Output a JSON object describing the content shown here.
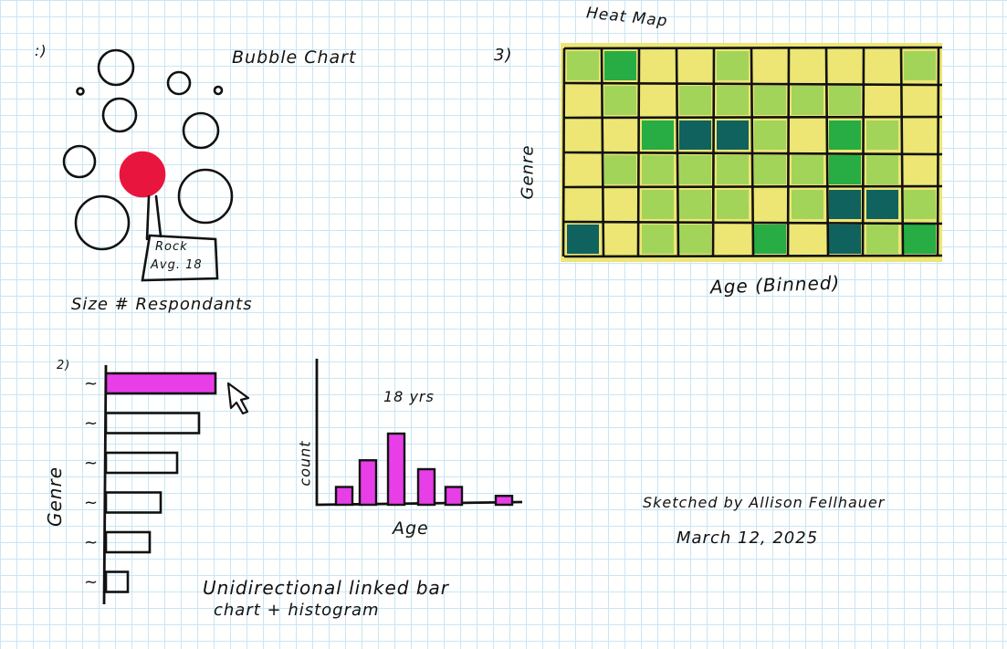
{
  "bubble_chart": {
    "number_mark": ":)",
    "title": "Bubble Chart",
    "tooltip_line1": "Rock",
    "tooltip_line2": "Avg. 18",
    "size_note": "Size # Respondants",
    "colors": {
      "highlight": "#e8163f",
      "stroke": "#111111"
    }
  },
  "linked_bar_histogram": {
    "number_mark": "2)",
    "y_label": "Genre",
    "histogram_annotation": "18 yrs",
    "histogram_y_label": "count",
    "histogram_x_label": "Age",
    "caption_line1": "Unidirectional linked bar",
    "caption_line2": "chart + histogram",
    "colors": {
      "highlight": "#e83ee8"
    },
    "bar_chart": {
      "type": "bar",
      "orientation": "horizontal",
      "categories": [
        "~",
        "~",
        "~",
        "~",
        "~",
        "~"
      ],
      "values": [
        10,
        8.5,
        6.5,
        5,
        4,
        2
      ],
      "highlighted_index": 0
    },
    "histogram": {
      "type": "bar",
      "values": [
        2,
        5,
        8,
        4,
        2,
        0,
        1
      ],
      "highlighted": true
    }
  },
  "heat_map": {
    "number_mark": "3)",
    "title": "Heat Map",
    "y_label": "Genre",
    "x_label": "Age (Binned)",
    "colors": {
      "low": "#ede674",
      "mid": "#a3d45a",
      "high": "#27ad43",
      "max": "#10625e"
    },
    "chart_data": {
      "type": "heatmap",
      "rows": 6,
      "cols": 10,
      "levels": [
        [
          1,
          2,
          0,
          0,
          1,
          0,
          0,
          0,
          0,
          1
        ],
        [
          0,
          1,
          0,
          1,
          1,
          1,
          1,
          1,
          0,
          0
        ],
        [
          0,
          0,
          2,
          3,
          3,
          1,
          0,
          2,
          1,
          0
        ],
        [
          0,
          1,
          1,
          1,
          1,
          1,
          1,
          2,
          1,
          0
        ],
        [
          0,
          0,
          1,
          1,
          1,
          0,
          1,
          3,
          3,
          1
        ],
        [
          3,
          0,
          1,
          1,
          0,
          2,
          0,
          3,
          1,
          2
        ]
      ]
    }
  },
  "signature": {
    "line1": "Sketched by Allison Fellhauer",
    "line2": "March 12, 2025"
  }
}
